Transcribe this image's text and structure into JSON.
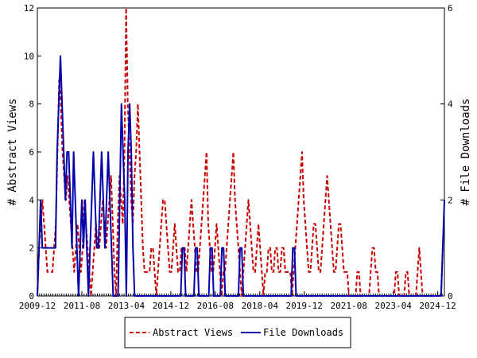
{
  "chart_data": {
    "type": "line",
    "title": "",
    "ylabel_left": "# Abstract Views",
    "ylabel_right": "# File Downloads",
    "ylim_left": [
      0,
      12
    ],
    "ylim_right": [
      0,
      6
    ],
    "y_ticks_left": [
      0,
      2,
      4,
      6,
      8,
      10,
      12
    ],
    "y_ticks_right": [
      0,
      2,
      4,
      6
    ],
    "x_tick_labels": [
      "2009-12",
      "2011-08",
      "2013-04",
      "2014-12",
      "2016-08",
      "2018-04",
      "2019-12",
      "2021-08",
      "2023-04",
      "2024-12"
    ],
    "x_start": "2009-12",
    "x_end": "2025-03",
    "grid": false,
    "legend_position": "bottom",
    "colors": {
      "views": "#cc0000",
      "downloads": "#0000aa"
    },
    "series": [
      {
        "name": "Abstract Views",
        "axis": "left",
        "style": "dashed",
        "values": [
          0,
          2,
          3,
          4,
          3,
          2,
          1,
          1,
          1,
          1,
          2,
          3,
          6,
          9,
          8,
          6,
          5,
          4,
          5,
          4,
          3,
          2,
          1,
          2,
          3,
          2,
          1,
          2,
          4,
          3,
          2,
          1,
          0,
          1,
          2,
          3,
          2,
          2,
          3,
          4,
          3,
          2,
          3,
          4,
          5,
          3,
          1,
          0,
          3,
          5,
          4,
          3,
          6,
          12,
          8,
          6,
          4,
          3,
          5,
          6,
          8,
          6,
          4,
          2,
          1,
          1,
          1,
          1,
          2,
          2,
          1,
          0,
          1,
          2,
          3,
          4,
          4,
          3,
          2,
          1,
          1,
          2,
          3,
          2,
          1,
          1,
          2,
          2,
          2,
          1,
          2,
          3,
          4,
          3,
          2,
          1,
          1,
          2,
          3,
          4,
          5,
          6,
          3,
          2,
          1,
          1,
          2,
          3,
          2,
          1,
          0,
          1,
          1,
          2,
          3,
          4,
          5,
          6,
          4,
          3,
          2,
          1,
          0,
          1,
          2,
          3,
          4,
          3,
          2,
          1,
          1,
          2,
          3,
          2,
          1,
          0,
          1,
          1,
          2,
          2,
          1,
          1,
          2,
          2,
          1,
          1,
          2,
          2,
          1,
          1,
          1,
          1,
          0,
          1,
          2,
          3,
          4,
          5,
          6,
          4,
          3,
          2,
          1,
          1,
          2,
          3,
          3,
          2,
          1,
          1,
          2,
          3,
          4,
          5,
          4,
          3,
          2,
          1,
          1,
          2,
          3,
          3,
          2,
          1,
          1,
          1,
          0,
          0,
          0,
          0,
          0,
          1,
          1,
          0,
          0,
          0,
          0,
          0,
          0,
          1,
          2,
          2,
          1,
          1,
          0,
          0,
          0,
          0,
          0,
          0,
          0,
          0,
          0,
          0,
          1,
          1,
          0,
          0,
          0,
          0,
          1,
          1,
          0,
          0,
          0,
          0,
          0,
          1,
          2,
          1,
          0,
          0,
          0,
          0,
          0,
          0,
          0,
          0,
          0,
          0,
          0,
          0,
          2,
          2
        ]
      },
      {
        "name": "File Downloads",
        "axis": "right",
        "style": "solid",
        "values": [
          0,
          1,
          2,
          1,
          1,
          1,
          1,
          1,
          1,
          1,
          1,
          1,
          3,
          4,
          5,
          4,
          3,
          2,
          3,
          3,
          2,
          1,
          3,
          2,
          1,
          0,
          1,
          2,
          1,
          2,
          1,
          0,
          1,
          2,
          3,
          2,
          1,
          1,
          2,
          3,
          2,
          1,
          2,
          3,
          2,
          1,
          0,
          0,
          0,
          0,
          2,
          4,
          3,
          2,
          0,
          3,
          4,
          3,
          1,
          0,
          0,
          0,
          0,
          0,
          0,
          0,
          0,
          0,
          0,
          0,
          0,
          0,
          0,
          0,
          0,
          0,
          0,
          0,
          0,
          0,
          0,
          0,
          0,
          0,
          0,
          0,
          0,
          0,
          1,
          1,
          0,
          0,
          0,
          0,
          0,
          0,
          1,
          1,
          0,
          0,
          0,
          0,
          0,
          0,
          0,
          1,
          1,
          0,
          0,
          0,
          0,
          0,
          1,
          1,
          0,
          0,
          0,
          0,
          0,
          0,
          0,
          0,
          0,
          1,
          1,
          0,
          0,
          0,
          0,
          0,
          0,
          0,
          0,
          0,
          0,
          0,
          0,
          0,
          0,
          0,
          0,
          0,
          0,
          0,
          0,
          0,
          0,
          0,
          0,
          0,
          0,
          0,
          0,
          0,
          0,
          1,
          1,
          0,
          0,
          0,
          0,
          0,
          0,
          0,
          0,
          0,
          0,
          0,
          0,
          0,
          0,
          0,
          0,
          0,
          0,
          0,
          0,
          0,
          0,
          0,
          0,
          0,
          0,
          0,
          0,
          0,
          0,
          0,
          0,
          0,
          0,
          0,
          0,
          0,
          0,
          0,
          0,
          0,
          0,
          0,
          0,
          0,
          0,
          0,
          0,
          0,
          0,
          0,
          0,
          0,
          0,
          0,
          0,
          0,
          0,
          0,
          0,
          0,
          0,
          0,
          0,
          0,
          0,
          0,
          0,
          0,
          0,
          0,
          0,
          0,
          0,
          0,
          0,
          0,
          0,
          0,
          0,
          0,
          0,
          0,
          0,
          0,
          0,
          0,
          0,
          0,
          1,
          2
        ]
      }
    ]
  }
}
